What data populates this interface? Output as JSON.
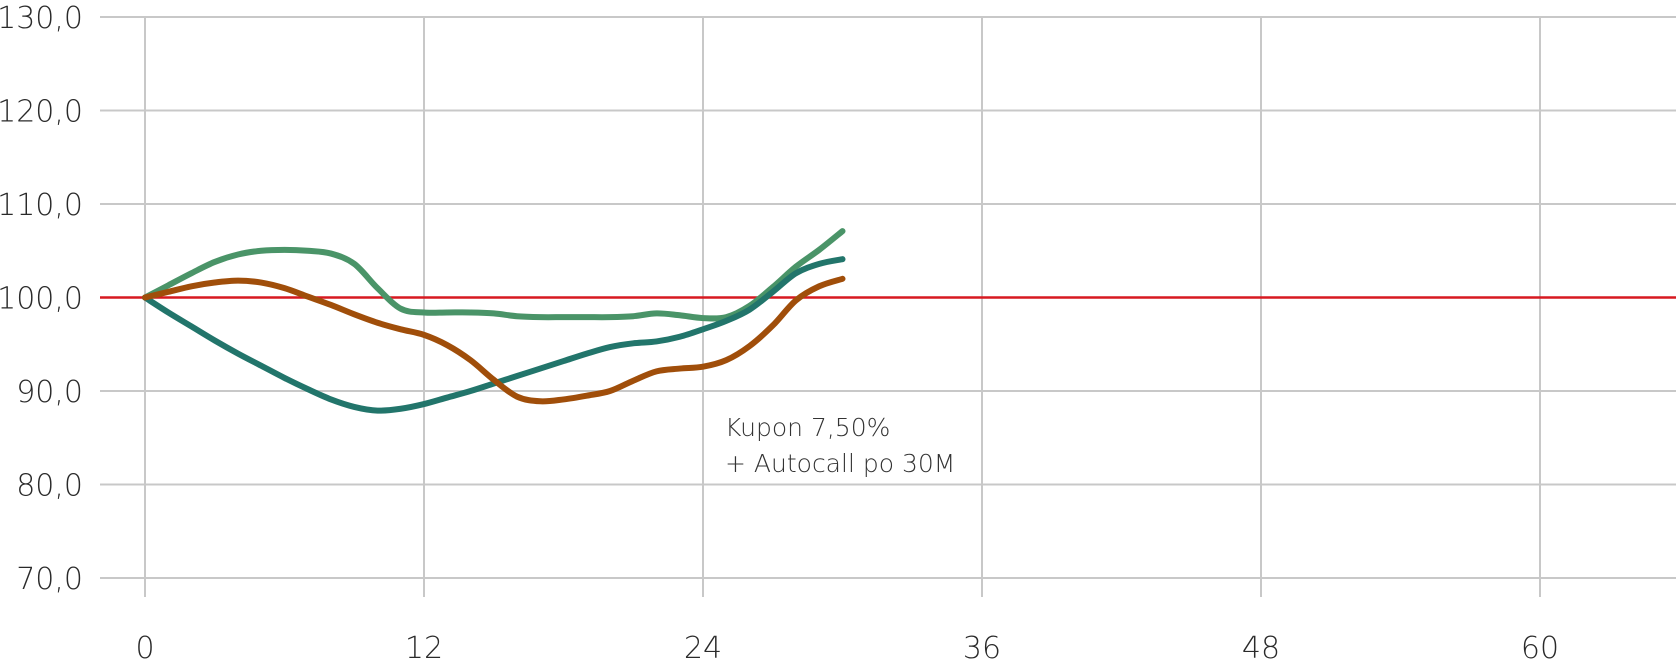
{
  "chart_data": {
    "type": "line",
    "title": "",
    "xlabel": "",
    "ylabel": "",
    "x_ticks": [
      0,
      12,
      24,
      36,
      48,
      60
    ],
    "x_tick_labels": [
      "0",
      "12",
      "24",
      "36",
      "48",
      "60"
    ],
    "xlim": [
      -2,
      65
    ],
    "y_ticks": [
      70,
      80,
      90,
      100,
      110,
      120,
      130
    ],
    "y_tick_labels": [
      "70,0",
      "80,0",
      "90,0",
      "100,0",
      "110,0",
      "120,0",
      "130,0"
    ],
    "ylim": [
      70,
      130
    ],
    "grid": true,
    "reference_line": {
      "y": 100,
      "color": "#d71920"
    },
    "series": [
      {
        "color": "#4a9468",
        "points": [
          [
            0,
            100
          ],
          [
            1,
            101.3
          ],
          [
            2,
            102.6
          ],
          [
            3,
            103.8
          ],
          [
            4,
            104.6
          ],
          [
            5,
            105
          ],
          [
            6,
            105.1
          ],
          [
            7,
            105
          ],
          [
            8,
            104.7
          ],
          [
            9,
            103.6
          ],
          [
            10,
            101
          ],
          [
            11,
            98.8
          ],
          [
            12,
            98.4
          ],
          [
            13,
            98.4
          ],
          [
            14,
            98.4
          ],
          [
            15,
            98.3
          ],
          [
            16,
            98
          ],
          [
            17,
            97.9
          ],
          [
            18,
            97.9
          ],
          [
            19,
            97.9
          ],
          [
            20,
            97.9
          ],
          [
            21,
            98
          ],
          [
            22,
            98.3
          ],
          [
            23,
            98.1
          ],
          [
            24,
            97.8
          ],
          [
            25,
            97.9
          ],
          [
            26,
            99.1
          ],
          [
            27,
            101.1
          ],
          [
            28,
            103.3
          ],
          [
            29,
            105.1
          ],
          [
            30,
            107.1
          ]
        ]
      },
      {
        "color": "#22756b",
        "points": [
          [
            0,
            100
          ],
          [
            1,
            98.4
          ],
          [
            2,
            96.9
          ],
          [
            3,
            95.4
          ],
          [
            4,
            94
          ],
          [
            5,
            92.7
          ],
          [
            6,
            91.4
          ],
          [
            7,
            90.2
          ],
          [
            8,
            89.1
          ],
          [
            9,
            88.3
          ],
          [
            10,
            87.9
          ],
          [
            11,
            88.1
          ],
          [
            12,
            88.6
          ],
          [
            13,
            89.3
          ],
          [
            14,
            90
          ],
          [
            15,
            90.8
          ],
          [
            16,
            91.6
          ],
          [
            17,
            92.4
          ],
          [
            18,
            93.2
          ],
          [
            19,
            94
          ],
          [
            20,
            94.7
          ],
          [
            21,
            95.1
          ],
          [
            22,
            95.3
          ],
          [
            23,
            95.8
          ],
          [
            24,
            96.6
          ],
          [
            25,
            97.5
          ],
          [
            26,
            98.7
          ],
          [
            27,
            100.6
          ],
          [
            28,
            102.6
          ],
          [
            29,
            103.6
          ],
          [
            30,
            104.1
          ]
        ]
      },
      {
        "color": "#a04e0a",
        "points": [
          [
            0,
            100
          ],
          [
            1,
            100.6
          ],
          [
            2,
            101.2
          ],
          [
            3,
            101.6
          ],
          [
            4,
            101.8
          ],
          [
            5,
            101.6
          ],
          [
            6,
            101
          ],
          [
            7,
            100.1
          ],
          [
            8,
            99.2
          ],
          [
            9,
            98.2
          ],
          [
            10,
            97.3
          ],
          [
            11,
            96.6
          ],
          [
            12,
            96
          ],
          [
            13,
            94.9
          ],
          [
            14,
            93.3
          ],
          [
            15,
            91.2
          ],
          [
            16,
            89.4
          ],
          [
            17,
            88.9
          ],
          [
            18,
            89.1
          ],
          [
            19,
            89.5
          ],
          [
            20,
            90
          ],
          [
            21,
            91.1
          ],
          [
            22,
            92.1
          ],
          [
            23,
            92.4
          ],
          [
            24,
            92.6
          ],
          [
            25,
            93.3
          ],
          [
            26,
            94.8
          ],
          [
            27,
            97
          ],
          [
            28,
            99.7
          ],
          [
            29,
            101.2
          ],
          [
            30,
            102
          ]
        ]
      }
    ],
    "annotation": {
      "line1": "Kupon 7,50%",
      "line2": "+ Autocall po 30M"
    }
  }
}
